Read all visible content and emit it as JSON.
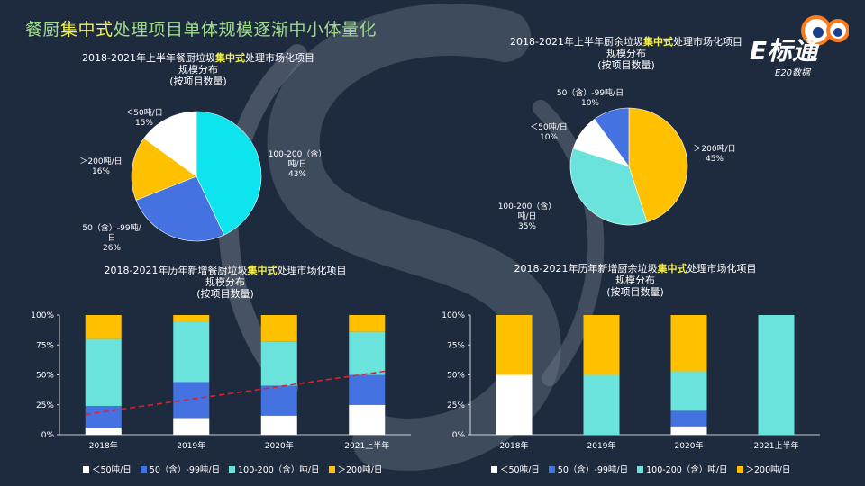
{
  "page_title": {
    "pre": "餐厨",
    "hl": "集中式",
    "post": "处理项目单体规模逐渐中小体量化"
  },
  "logo": {
    "text": "E标通",
    "sub": "E20数据"
  },
  "colors": {
    "lt50": "#ffffff",
    "s50_99": "#4472e0",
    "s100_200": "#69e3dc",
    "gt200": "#ffc000",
    "pie1_100_200": "#0ee4ee"
  },
  "chart_data": [
    {
      "id": "pie1",
      "type": "pie",
      "title": {
        "line1_pre": "2018-2021年上半年餐厨垃圾",
        "line1_hl": "集中式",
        "line1_post": "处理市场化项目",
        "line2": "规模分布",
        "line3": "(按项目数量)"
      },
      "slices": [
        {
          "key": "s100_200",
          "name": "100-200（含）吨/日",
          "value": 43,
          "label_lines": [
            "100-200（含）",
            "吨/日",
            "43%"
          ]
        },
        {
          "key": "s50_99",
          "name": "50（含）-99吨/日",
          "value": 26,
          "label_lines": [
            "50（含）-99吨/",
            "日",
            "26%"
          ]
        },
        {
          "key": "gt200",
          "name": "＞200吨/日",
          "value": 16,
          "label_lines": [
            "＞200吨/日",
            "16%"
          ]
        },
        {
          "key": "lt50",
          "name": "＜50吨/日",
          "value": 15,
          "label_lines": [
            "＜50吨/日",
            "15%"
          ]
        }
      ]
    },
    {
      "id": "pie2",
      "type": "pie",
      "title": {
        "line1_pre": "2018-2021年上半年厨余垃圾",
        "line1_hl": "集中式",
        "line1_post": "处理市场化项目",
        "line2": "规模分布",
        "line3": "(按项目数量)"
      },
      "slices": [
        {
          "key": "gt200",
          "name": "＞200吨/日",
          "value": 45,
          "label_lines": [
            "＞200吨/日",
            "45%"
          ]
        },
        {
          "key": "s100_200",
          "name": "100-200（含）吨/日",
          "value": 35,
          "label_lines": [
            "100-200（含）",
            "吨/日",
            "35%"
          ]
        },
        {
          "key": "lt50",
          "name": "＜50吨/日",
          "value": 10,
          "label_lines": [
            "＜50吨/日",
            "10%"
          ]
        },
        {
          "key": "s50_99",
          "name": "50（含）-99吨/日",
          "value": 10,
          "label_lines": [
            "50（含）-99吨/日",
            "10%"
          ]
        }
      ]
    },
    {
      "id": "bar1",
      "type": "bar",
      "stacked": true,
      "title": {
        "line1_pre": "2018-2021年历年新增餐厨垃圾",
        "line1_hl": "集中式",
        "line1_post": "处理市场化项目",
        "line2": "规模分布",
        "line3": "(按项目数量)"
      },
      "categories": [
        "2018年",
        "2019年",
        "2020年",
        "2021上半年"
      ],
      "yticks": [
        "0%",
        "25%",
        "50%",
        "75%",
        "100%"
      ],
      "ylim": [
        0,
        100
      ],
      "series": [
        {
          "key": "lt50",
          "name": "＜50吨/日",
          "values": [
            6,
            14,
            16,
            25
          ]
        },
        {
          "key": "s50_99",
          "name": "50（含）-99吨/日",
          "values": [
            18,
            30,
            25,
            25
          ]
        },
        {
          "key": "s100_200",
          "name": "100-200（含）吨/日",
          "values": [
            56,
            50,
            37,
            36
          ]
        },
        {
          "key": "gt200",
          "name": "＞200吨/日",
          "values": [
            20,
            6,
            22,
            14
          ]
        }
      ],
      "trend": {
        "from": 17,
        "to": 53
      }
    },
    {
      "id": "bar2",
      "type": "bar",
      "stacked": true,
      "title": {
        "line1_pre": "2018-2021年历年新增厨余垃圾",
        "line1_hl": "集中式",
        "line1_post": "处理市场化项目",
        "line2": "规模分布",
        "line3": "(按项目数量)"
      },
      "categories": [
        "2018年",
        "2019年",
        "2020年",
        "2021上半年"
      ],
      "yticks": [
        "0%",
        "25%",
        "50%",
        "75%",
        "100%"
      ],
      "ylim": [
        0,
        100
      ],
      "series": [
        {
          "key": "lt50",
          "name": "＜50吨/日",
          "values": [
            50,
            0,
            7,
            0
          ]
        },
        {
          "key": "s50_99",
          "name": "50（含）-99吨/日",
          "values": [
            0,
            0,
            13,
            0
          ]
        },
        {
          "key": "s100_200",
          "name": "100-200（含）吨/日",
          "values": [
            0,
            50,
            33,
            100
          ]
        },
        {
          "key": "gt200",
          "name": "＞200吨/日",
          "values": [
            50,
            50,
            47,
            0
          ]
        }
      ]
    }
  ],
  "legend": [
    {
      "key": "lt50",
      "label": "＜50吨/日"
    },
    {
      "key": "s50_99",
      "label": "50（含）-99吨/日"
    },
    {
      "key": "s100_200",
      "label": "100-200（含）吨/日"
    },
    {
      "key": "gt200",
      "label": "＞200吨/日"
    }
  ]
}
